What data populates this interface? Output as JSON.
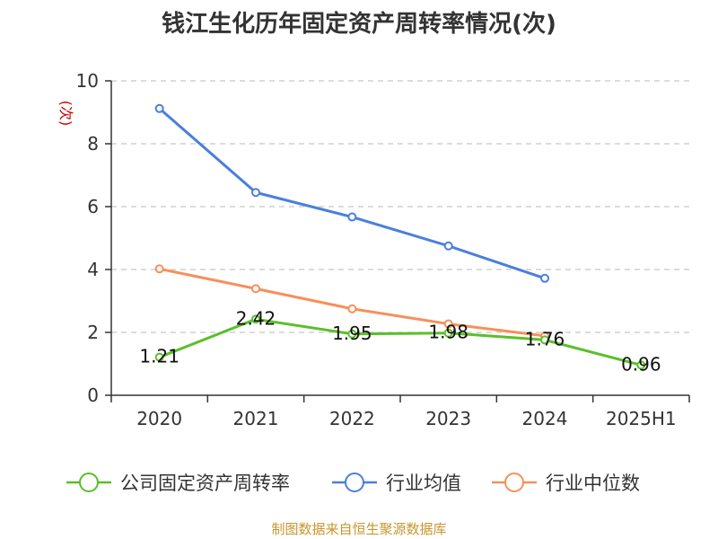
{
  "title": "钱江生化历年固定资产周转率情况(次)",
  "source": "制图数据来自恒生聚源数据库",
  "chart_data": {
    "type": "line",
    "title": "钱江生化历年固定资产周转率情况(次)",
    "ylabel": "(次)",
    "ylabel_color": "#cc0000",
    "categories": [
      "2020",
      "2021",
      "2022",
      "2023",
      "2024",
      "2025H1"
    ],
    "yticks": [
      "0",
      "2",
      "4",
      "6",
      "8",
      "10"
    ],
    "ylim": [
      0,
      10
    ],
    "grid": "horizontal dashed",
    "legend_position": "bottom",
    "series": [
      {
        "name": "公司固定资产周转率",
        "color": "#5bbf2a",
        "values": [
          1.21,
          2.42,
          1.95,
          1.98,
          1.76,
          0.96
        ],
        "labels": [
          "1.21",
          "2.42",
          "1.95",
          "1.98",
          "1.76",
          "0.96"
        ]
      },
      {
        "name": "行业均值",
        "color": "#4a7fdc",
        "values": [
          9.12,
          6.45,
          5.67,
          4.75,
          3.72,
          null
        ]
      },
      {
        "name": "行业中位数",
        "color": "#f5905a",
        "values": [
          4.02,
          3.39,
          2.75,
          2.27,
          1.89,
          null
        ]
      }
    ]
  }
}
